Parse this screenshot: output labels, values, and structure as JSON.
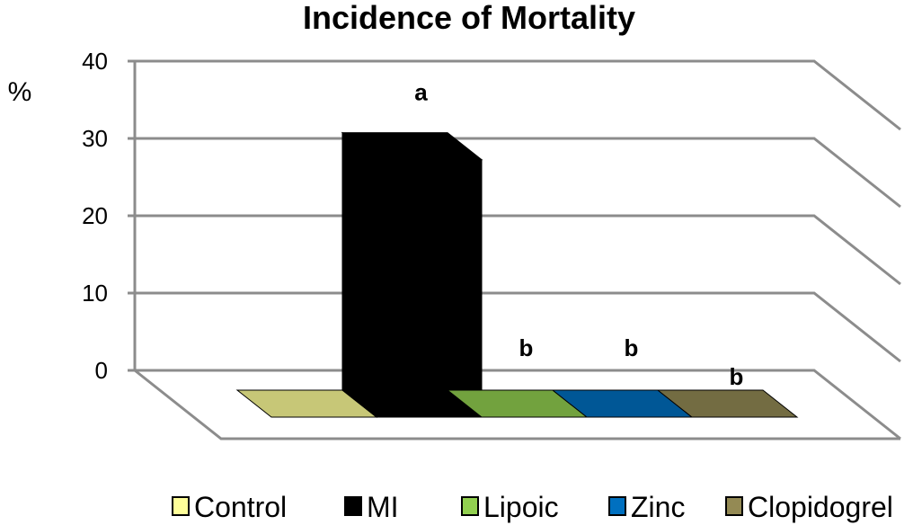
{
  "chart_data": {
    "type": "bar",
    "title": "Incidence of Mortality",
    "ylabel": "%",
    "xlabel": "",
    "ylim": [
      0,
      40
    ],
    "yticks": [
      "0",
      "10",
      "20",
      "30",
      "40"
    ],
    "grid": true,
    "three_d": true,
    "legend_position": "bottom",
    "categories": [
      "Control",
      "MI",
      "Lipoic",
      "Zinc",
      "Clopidogrel"
    ],
    "values": [
      0,
      33.3,
      0,
      0,
      0
    ],
    "colors": [
      "#ffff99",
      "#000000",
      "#92d050",
      "#0070c0",
      "#948a54"
    ],
    "annotations": [
      "",
      "a",
      "b",
      "b",
      "b"
    ]
  }
}
